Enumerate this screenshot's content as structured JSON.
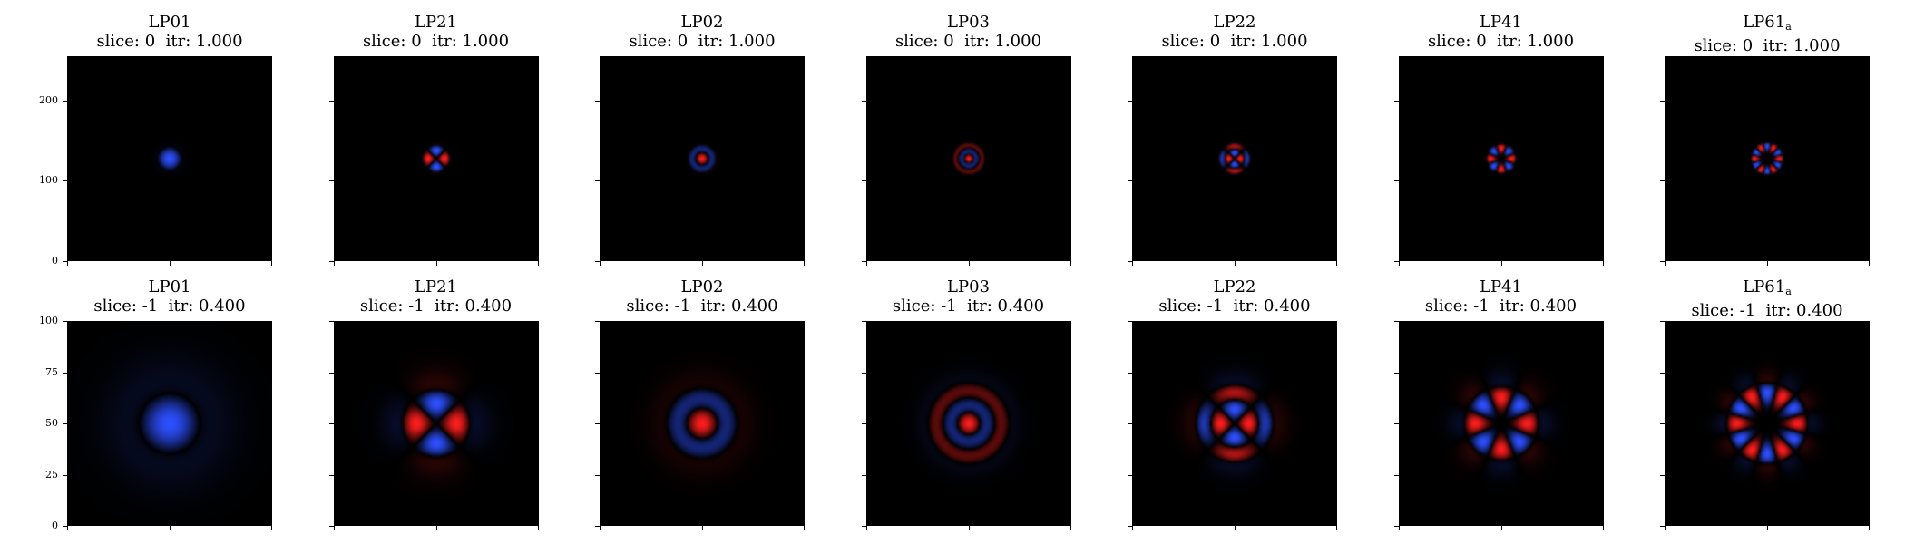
{
  "chart_data": {
    "type": "heatmap",
    "description_colormap": [
      "#3355ff",
      "#000000",
      "#ff2222"
    ],
    "rows": [
      {
        "slice_label": "slice: 0",
        "itr_label": "itr: 1.000",
        "y_ticks": [
          "0",
          "100",
          "200"
        ],
        "y_range": [
          0,
          255
        ],
        "mode_scale": 1.0
      },
      {
        "slice_label": "slice: -1",
        "itr_label": "itr: 0.400",
        "y_ticks": [
          "0",
          "25",
          "50",
          "75",
          "100"
        ],
        "y_range": [
          0,
          100
        ],
        "mode_scale": 2.5
      }
    ],
    "modes": [
      {
        "name": "LP01",
        "subscript": "",
        "l": 0,
        "m": 1
      },
      {
        "name": "LP21",
        "subscript": "",
        "l": 2,
        "m": 1
      },
      {
        "name": "LP02",
        "subscript": "",
        "l": 0,
        "m": 2
      },
      {
        "name": "LP03",
        "subscript": "",
        "l": 0,
        "m": 3
      },
      {
        "name": "LP22",
        "subscript": "",
        "l": 2,
        "m": 2
      },
      {
        "name": "LP41",
        "subscript": "",
        "l": 4,
        "m": 1
      },
      {
        "name": "LP61",
        "subscript": "a",
        "l": 6,
        "m": 1
      }
    ]
  }
}
